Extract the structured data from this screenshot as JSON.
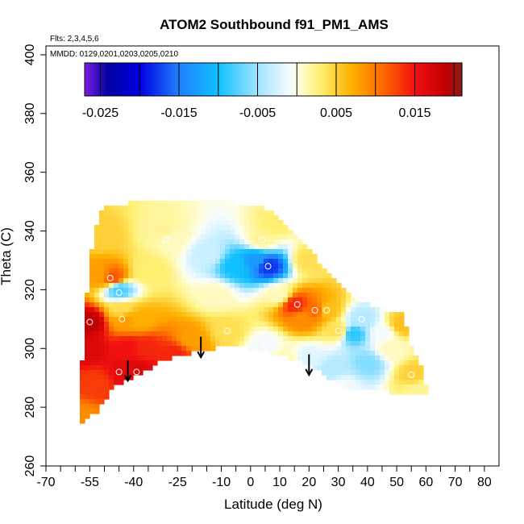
{
  "chart_data": {
    "type": "heatmap",
    "title": "ATOM2 Southbound f91_PM1_AMS",
    "subtitle_flights": "Flts: 2,3,4,5,6",
    "subtitle_dates": "MMDD: 0129,0201,0203,0205,0210",
    "xlabel": "Latitude (deg N)",
    "ylabel": "Theta (C)",
    "xlim": [
      -70,
      85
    ],
    "ylim": [
      260,
      403
    ],
    "x_ticks": [
      -70,
      -60,
      -55,
      -50,
      -40,
      -30,
      -25,
      -20,
      -10,
      -5,
      0,
      10,
      15,
      20,
      30,
      40,
      50,
      60,
      70,
      80
    ],
    "x_tick_labels": [
      "-70",
      "",
      "-55",
      "",
      "-40",
      "",
      "-25",
      "",
      "-10",
      "",
      "0",
      "10",
      "",
      "20",
      "30",
      "40",
      "50",
      "60",
      "70",
      "80"
    ],
    "x_minor_ticks": [
      -65,
      -45,
      -35,
      -15,
      5,
      25,
      35,
      45,
      55,
      65,
      75
    ],
    "y_ticks": [
      260,
      280,
      300,
      320,
      340,
      360,
      380,
      400
    ],
    "colorbar": {
      "range": [
        -0.027,
        0.021
      ],
      "ticks": [
        -0.025,
        -0.015,
        -0.005,
        0.005,
        0.015
      ],
      "tick_labels": [
        "-0.025",
        "-0.015",
        "-0.005",
        "0.005",
        "0.015"
      ],
      "boundaries": [
        -0.027,
        -0.025,
        -0.02,
        -0.015,
        -0.01,
        -0.005,
        0,
        0.005,
        0.01,
        0.015,
        0.02,
        0.021
      ],
      "stops": [
        {
          "v": -0.027,
          "c": "#7b1fe0"
        },
        {
          "v": -0.024,
          "c": "#0000a0"
        },
        {
          "v": -0.02,
          "c": "#0000e0"
        },
        {
          "v": -0.015,
          "c": "#2080ff"
        },
        {
          "v": -0.01,
          "c": "#10c0ff"
        },
        {
          "v": -0.005,
          "c": "#a0e4ff"
        },
        {
          "v": -0.001,
          "c": "#f4fbff"
        },
        {
          "v": 0.0,
          "c": "#ffffe6"
        },
        {
          "v": 0.003,
          "c": "#ffef70"
        },
        {
          "v": 0.007,
          "c": "#ffb000"
        },
        {
          "v": 0.011,
          "c": "#ff6800"
        },
        {
          "v": 0.015,
          "c": "#f01010"
        },
        {
          "v": 0.019,
          "c": "#c00000"
        },
        {
          "v": 0.021,
          "c": "#8a1a1a"
        }
      ]
    },
    "field_points": [
      {
        "x": -58,
        "y": 276,
        "v": 0.009
      },
      {
        "x": -56,
        "y": 300,
        "v": 0.017
      },
      {
        "x": -55,
        "y": 309,
        "v": 0.019
      },
      {
        "x": -53,
        "y": 288,
        "v": 0.013
      },
      {
        "x": -52,
        "y": 325,
        "v": 0.008
      },
      {
        "x": -51,
        "y": 338,
        "v": 0.005
      },
      {
        "x": -47,
        "y": 324,
        "v": 0.012
      },
      {
        "x": -45,
        "y": 320,
        "v": -0.008
      },
      {
        "x": -44,
        "y": 313,
        "v": 0.004
      },
      {
        "x": -43,
        "y": 310,
        "v": 0.008
      },
      {
        "x": -42,
        "y": 300,
        "v": 0.015
      },
      {
        "x": -42,
        "y": 292,
        "v": 0.016
      },
      {
        "x": -39,
        "y": 292,
        "v": 0.017
      },
      {
        "x": -36,
        "y": 300,
        "v": 0.014
      },
      {
        "x": -38,
        "y": 310,
        "v": 0.007
      },
      {
        "x": -35,
        "y": 327,
        "v": 0.003
      },
      {
        "x": -30,
        "y": 340,
        "v": 0.002
      },
      {
        "x": -27,
        "y": 337,
        "v": 0.001
      },
      {
        "x": -26,
        "y": 298,
        "v": 0.014
      },
      {
        "x": -20,
        "y": 303,
        "v": 0.008
      },
      {
        "x": -15,
        "y": 332,
        "v": -0.003
      },
      {
        "x": -12,
        "y": 318,
        "v": 0.001
      },
      {
        "x": -8,
        "y": 306,
        "v": 0.004
      },
      {
        "x": -5,
        "y": 328,
        "v": -0.01
      },
      {
        "x": 2,
        "y": 330,
        "v": -0.013
      },
      {
        "x": 4,
        "y": 337,
        "v": 0.002
      },
      {
        "x": 5,
        "y": 301,
        "v": -0.001
      },
      {
        "x": 6,
        "y": 328,
        "v": -0.018
      },
      {
        "x": 8,
        "y": 342,
        "v": 0.003
      },
      {
        "x": 10,
        "y": 318,
        "v": 0.001
      },
      {
        "x": 15,
        "y": 315,
        "v": 0.014
      },
      {
        "x": 12,
        "y": 297,
        "v": 0.001
      },
      {
        "x": 18,
        "y": 310,
        "v": 0.009
      },
      {
        "x": 20,
        "y": 330,
        "v": 0.004
      },
      {
        "x": 20,
        "y": 297,
        "v": -0.002
      },
      {
        "x": 22,
        "y": 313,
        "v": 0.011
      },
      {
        "x": 26,
        "y": 313,
        "v": 0.006
      },
      {
        "x": 28,
        "y": 293,
        "v": -0.004
      },
      {
        "x": 30,
        "y": 306,
        "v": 0.004
      },
      {
        "x": 31,
        "y": 287,
        "v": -0.001
      },
      {
        "x": 35,
        "y": 305,
        "v": -0.009
      },
      {
        "x": 38,
        "y": 310,
        "v": -0.004
      },
      {
        "x": 40,
        "y": 295,
        "v": -0.006
      },
      {
        "x": 45,
        "y": 305,
        "v": -0.001
      },
      {
        "x": 48,
        "y": 300,
        "v": 0.001
      },
      {
        "x": 52,
        "y": 308,
        "v": 0.006
      },
      {
        "x": 56,
        "y": 291,
        "v": 0.005
      },
      {
        "x": 58,
        "y": 286,
        "v": 0.002
      }
    ],
    "data_points": [
      {
        "x": -55,
        "y": 309
      },
      {
        "x": -48,
        "y": 324
      },
      {
        "x": -45,
        "y": 319
      },
      {
        "x": -44,
        "y": 310
      },
      {
        "x": -45,
        "y": 292
      },
      {
        "x": -39,
        "y": 292
      },
      {
        "x": -29,
        "y": 337
      },
      {
        "x": -8,
        "y": 306
      },
      {
        "x": 4,
        "y": 337
      },
      {
        "x": 6,
        "y": 328
      },
      {
        "x": 5,
        "y": 301
      },
      {
        "x": 16,
        "y": 315
      },
      {
        "x": 22,
        "y": 313
      },
      {
        "x": 26,
        "y": 313
      },
      {
        "x": 30,
        "y": 306
      },
      {
        "x": 38,
        "y": 310
      },
      {
        "x": 31,
        "y": 287
      },
      {
        "x": 55,
        "y": 291
      }
    ],
    "arrows": [
      {
        "x": -42,
        "y_from": 296,
        "y_to": 289
      },
      {
        "x": -17,
        "y_from": 304,
        "y_to": 297
      },
      {
        "x": 20,
        "y_from": 298,
        "y_to": 291
      }
    ]
  }
}
